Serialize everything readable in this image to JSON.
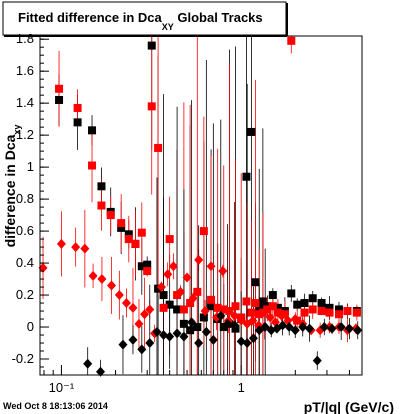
{
  "chart_data": {
    "type": "scatter",
    "title": "Fitted difference in Dca",
    "title_subscript": "XY",
    "title_suffix": " Global Tracks",
    "xlabel": "pT/|q| (GeV/c)",
    "ylabel": "difference in Dca",
    "ylabel_subscript": "xy",
    "xscale": "log",
    "xlim": [
      0.076,
      4.7
    ],
    "ylim": [
      -0.3,
      1.82
    ],
    "xticks": [
      {
        "value": 0.1,
        "label": "10⁻¹"
      },
      {
        "value": 1,
        "label": "1"
      }
    ],
    "yticks": [
      -0.2,
      0,
      0.2,
      0.4,
      0.6,
      0.8,
      1,
      1.2,
      1.4,
      1.6,
      1.8
    ],
    "ytick_labels": [
      "-0.2",
      "0",
      "0.2",
      "0.4",
      "0.6",
      "0.8",
      "1",
      "1.2",
      "1.4",
      "1.6",
      "1.8"
    ],
    "grid": false,
    "series": [
      {
        "color": "#000000",
        "marker": "square",
        "x": [
          0.097,
          0.123,
          0.148,
          0.167,
          0.188,
          0.215,
          0.237,
          0.258,
          0.28,
          0.3,
          0.318,
          0.345,
          0.37,
          0.4,
          0.44,
          0.48,
          0.52,
          0.57,
          0.62,
          0.68,
          0.74,
          0.8,
          0.86,
          0.93,
          1.0,
          1.07,
          1.14,
          1.2,
          1.26,
          1.32,
          1.4,
          1.5,
          1.6,
          1.75,
          1.9,
          2.05,
          2.25,
          2.5,
          2.8,
          3.1,
          3.5,
          3.9,
          4.4
        ],
        "y": [
          1.42,
          1.28,
          1.23,
          0.88,
          0.72,
          0.62,
          0.58,
          0.52,
          0.38,
          0.39,
          1.76,
          0.24,
          0.2,
          0.14,
          0.11,
          0.02,
          -0.02,
          0.0,
          0.06,
          0.13,
          0.05,
          0.0,
          0.02,
          -0.01,
          0.05,
          0.94,
          1.22,
          0.28,
          0.12,
          0.16,
          0.13,
          0.2,
          0.12,
          0.1,
          0.21,
          0.14,
          0.15,
          0.18,
          0.15,
          0.12,
          0.11,
          0.1,
          0.1
        ]
      },
      {
        "color": "#ff0000",
        "marker": "square",
        "x": [
          0.097,
          0.123,
          0.148,
          0.167,
          0.188,
          0.215,
          0.237,
          0.258,
          0.28,
          0.3,
          0.318,
          0.345,
          0.37,
          0.4,
          0.44,
          0.48,
          0.52,
          0.57,
          0.62,
          0.68,
          0.74,
          0.8,
          0.86,
          0.93,
          1.0,
          1.07,
          1.14,
          1.2,
          1.26,
          1.32,
          1.4,
          1.5,
          1.6,
          1.75,
          1.9,
          2.05,
          2.25,
          2.5,
          2.8,
          3.1,
          3.5,
          3.9,
          4.4
        ],
        "y": [
          1.49,
          1.37,
          1.01,
          0.76,
          0.7,
          0.65,
          0.55,
          0.52,
          0.59,
          0.35,
          1.38,
          1.12,
          0.12,
          0.55,
          0.2,
          0.11,
          0.15,
          0.22,
          0.6,
          0.17,
          0.12,
          0.11,
          0.1,
          0.13,
          0.06,
          0.16,
          0.09,
          0.15,
          0.08,
          0.09,
          0.11,
          0.13,
          0.09,
          0.08,
          1.79,
          0.04,
          0.09,
          0.11,
          0.1,
          0.09,
          0.08,
          0.1,
          0.09
        ]
      },
      {
        "color": "#ff0000",
        "marker": "diamond",
        "x": [
          0.079,
          0.1,
          0.12,
          0.135,
          0.15,
          0.168,
          0.19,
          0.21,
          0.23,
          0.25,
          0.27,
          0.29,
          0.31,
          0.33,
          0.36,
          0.39,
          0.42,
          0.46,
          0.5,
          0.54,
          0.58,
          0.63,
          0.68,
          0.73,
          0.79,
          0.85,
          0.92,
          1.0,
          1.08,
          1.16,
          1.25,
          1.35,
          1.45,
          1.55,
          1.68,
          1.82,
          2.0,
          2.2,
          2.45,
          2.75,
          3.1,
          3.5,
          3.9,
          4.35
        ],
        "y": [
          0.37,
          0.52,
          0.5,
          0.49,
          0.32,
          0.3,
          0.26,
          0.2,
          0.15,
          0.12,
          0.02,
          0.08,
          0.11,
          -0.04,
          0.25,
          0.33,
          0.38,
          0.22,
          0.31,
          0.18,
          0.42,
          0.1,
          0.38,
          0.06,
          0.35,
          0.04,
          0.07,
          0.04,
          0.02,
          0.04,
          0.01,
          0.0,
          0.06,
          0.03,
          0.07,
          0.04,
          0.05,
          0.02,
          -0.02,
          -0.02,
          0.0,
          0.0,
          -0.02,
          -0.01
        ]
      },
      {
        "color": "#000000",
        "marker": "diamond",
        "x": [
          0.14,
          0.165,
          0.22,
          0.25,
          0.28,
          0.31,
          0.34,
          0.37,
          0.4,
          0.44,
          0.48,
          0.53,
          0.58,
          0.64,
          0.7,
          0.77,
          0.84,
          0.92,
          1.0,
          1.08,
          1.17,
          1.26,
          1.36,
          1.47,
          1.58,
          1.7,
          1.85,
          2.0,
          2.2,
          2.4,
          2.65,
          2.9,
          3.2,
          3.6,
          4.0,
          4.45
        ],
        "y": [
          -0.23,
          -0.28,
          -0.11,
          -0.08,
          -0.14,
          -0.1,
          -0.03,
          -0.05,
          -0.06,
          -0.04,
          -0.06,
          0.03,
          -0.1,
          -0.03,
          -0.08,
          0.07,
          0.02,
          0.01,
          -0.09,
          -0.1,
          -0.07,
          -0.02,
          0.0,
          -0.02,
          -0.01,
          0.01,
          0.0,
          -0.02,
          0.0,
          -0.01,
          -0.21,
          0.0,
          -0.01,
          0.0,
          -0.01,
          -0.02
        ]
      }
    ]
  },
  "footer": {
    "timestamp": "Wed Oct  8 18:13:06 2014"
  }
}
